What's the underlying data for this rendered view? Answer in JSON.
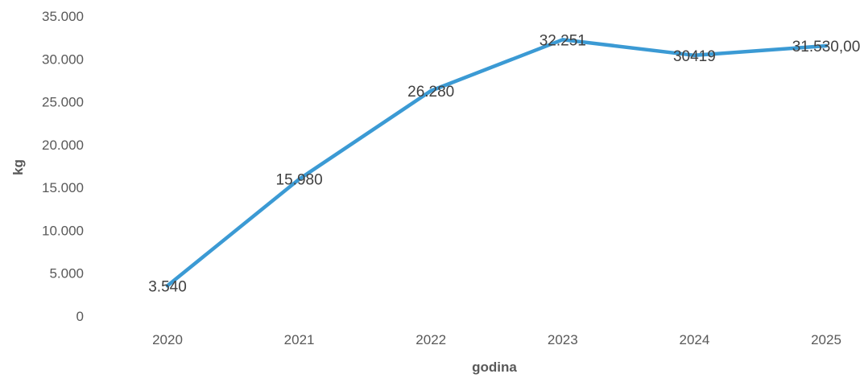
{
  "chart_data": {
    "type": "line",
    "title": "",
    "xlabel": "godina",
    "ylabel": "kg",
    "categories": [
      "2020",
      "2021",
      "2022",
      "2023",
      "2024",
      "2025"
    ],
    "series": [
      {
        "values": [
          3540,
          15980,
          26280,
          32251,
          30419,
          31530
        ],
        "data_labels": [
          "3.540",
          "15.980",
          "26.280",
          "32.251",
          "30419",
          "31.530,00"
        ],
        "color": "#3b9ad4"
      }
    ],
    "ylim": [
      0,
      35000
    ],
    "yticks": [
      0,
      5000,
      10000,
      15000,
      20000,
      25000,
      30000,
      35000
    ],
    "ytick_labels": [
      "0",
      "5.000",
      "10.000",
      "15.000",
      "20.000",
      "25.000",
      "30.000",
      "35.000"
    ],
    "grid": false,
    "legend": "none"
  }
}
